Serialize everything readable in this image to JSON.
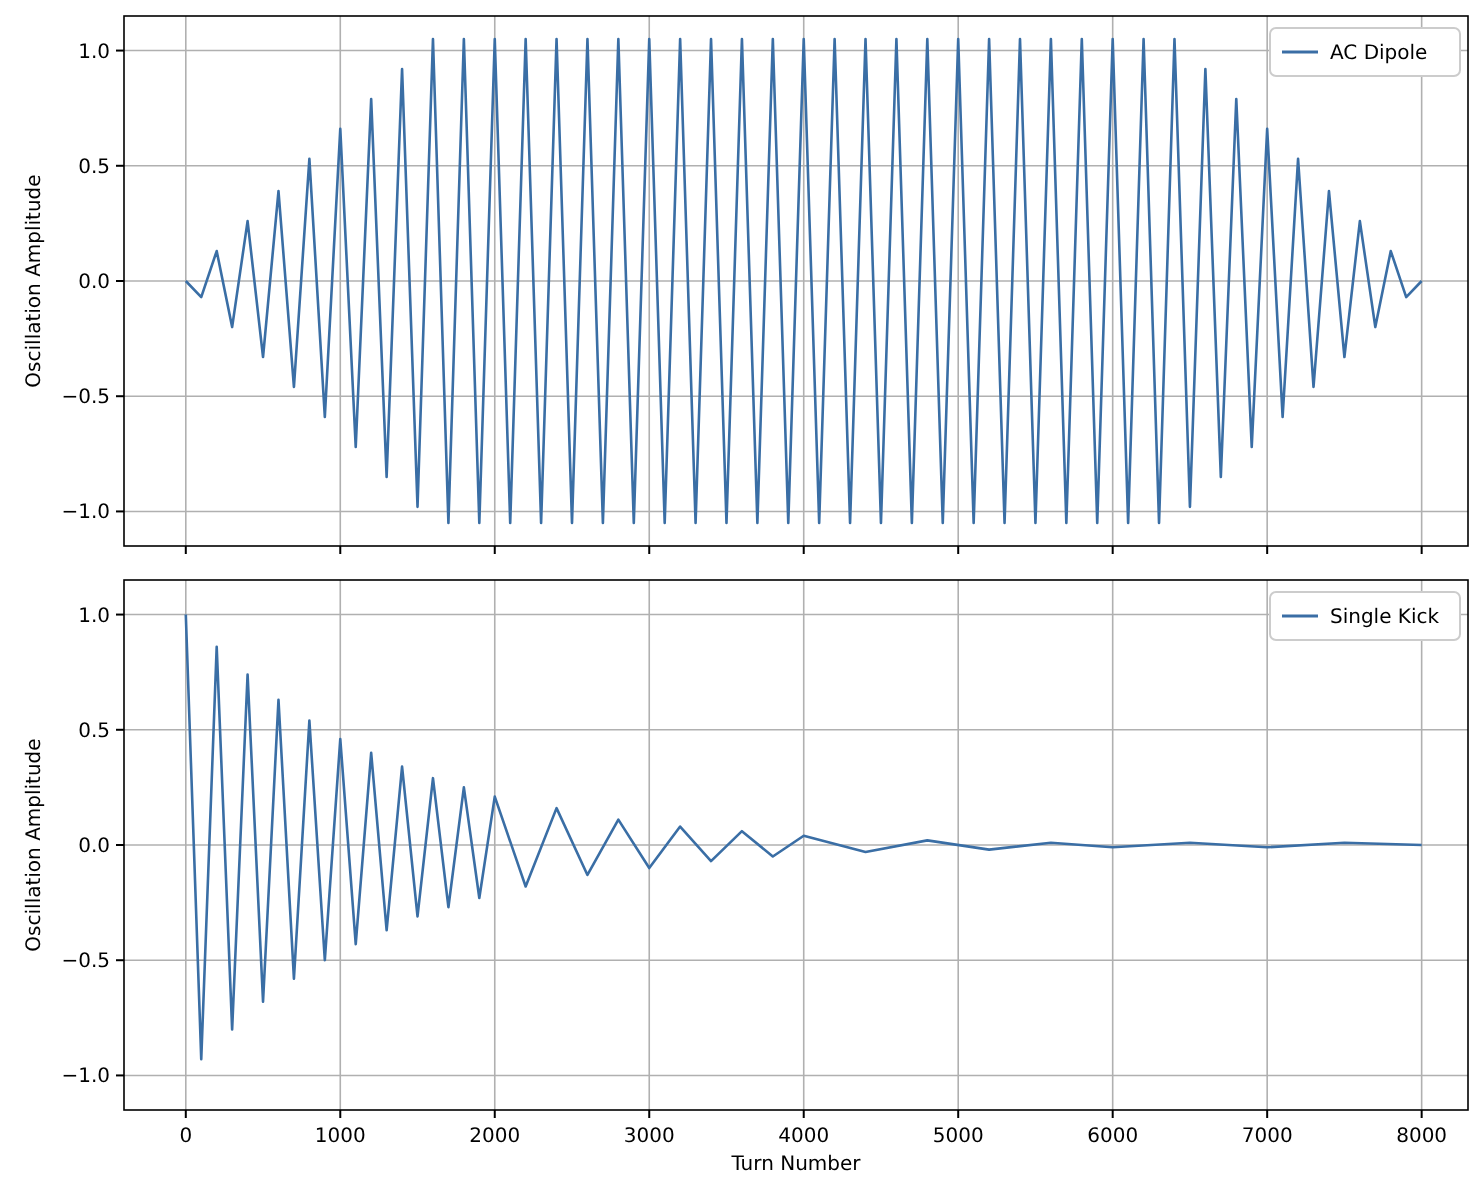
{
  "chart_data": [
    {
      "type": "line",
      "ylabel": "Oscillation Amplitude",
      "xlim": [
        -400,
        8300
      ],
      "ylim": [
        -1.15,
        1.15
      ],
      "xticks": [
        0,
        1000,
        2000,
        3000,
        4000,
        5000,
        6000,
        7000,
        8000
      ],
      "yticks": [
        {
          "value": -1,
          "label": "−1.0"
        },
        {
          "value": -0.5,
          "label": "−0.5"
        },
        {
          "value": 0,
          "label": "0.0"
        },
        {
          "value": 0.5,
          "label": "0.5"
        },
        {
          "value": 1,
          "label": "1.0"
        }
      ],
      "tick_labels": "y",
      "grid": true,
      "legend": "top right",
      "line_style": "solid",
      "series": [
        {
          "name": "AC Dipole",
          "color": "#3a6ea5",
          "x": [
            0,
            100,
            200,
            300,
            400,
            500,
            600,
            700,
            800,
            900,
            1000,
            1100,
            1200,
            1300,
            1400,
            1500,
            1600,
            1700,
            1800,
            1900,
            2000,
            2100,
            2200,
            2300,
            2400,
            2500,
            2600,
            2700,
            2800,
            2900,
            3000,
            3100,
            3200,
            3300,
            3400,
            3500,
            3600,
            3700,
            3800,
            3900,
            4000,
            4100,
            4200,
            4300,
            4400,
            4500,
            4600,
            4700,
            4800,
            4900,
            5000,
            5100,
            5200,
            5300,
            5400,
            5500,
            5600,
            5700,
            5800,
            5900,
            6000,
            6100,
            6200,
            6300,
            6400,
            6500,
            6600,
            6700,
            6800,
            6900,
            7000,
            7100,
            7200,
            7300,
            7400,
            7500,
            7600,
            7700,
            7800,
            7900,
            8000
          ],
          "values": [
            0,
            -0.07,
            0.13,
            -0.2,
            0.26,
            -0.33,
            0.39,
            -0.46,
            0.53,
            -0.59,
            0.66,
            -0.72,
            0.79,
            -0.85,
            0.92,
            -0.98,
            1.05,
            -1.05,
            1.05,
            -1.05,
            1.05,
            -1.05,
            1.05,
            -1.05,
            1.05,
            -1.05,
            1.05,
            -1.05,
            1.05,
            -1.05,
            1.05,
            -1.05,
            1.05,
            -1.05,
            1.05,
            -1.05,
            1.05,
            -1.05,
            1.05,
            -1.05,
            1.05,
            -1.05,
            1.05,
            -1.05,
            1.05,
            -1.05,
            1.05,
            -1.05,
            1.05,
            -1.05,
            1.05,
            -1.05,
            1.05,
            -1.05,
            1.05,
            -1.05,
            1.05,
            -1.05,
            1.05,
            -1.05,
            1.05,
            -1.05,
            1.05,
            -1.05,
            1.05,
            -0.98,
            0.92,
            -0.85,
            0.79,
            -0.72,
            0.66,
            -0.59,
            0.53,
            -0.46,
            0.39,
            -0.33,
            0.26,
            -0.2,
            0.13,
            -0.07,
            0
          ]
        }
      ]
    },
    {
      "type": "line",
      "xlabel": "Turn Number",
      "ylabel": "Oscillation Amplitude",
      "xlim": [
        -400,
        8300
      ],
      "ylim": [
        -1.15,
        1.15
      ],
      "xticks": [
        0,
        1000,
        2000,
        3000,
        4000,
        5000,
        6000,
        7000,
        8000
      ],
      "yticks": [
        {
          "value": -1,
          "label": "−1.0"
        },
        {
          "value": -0.5,
          "label": "−0.5"
        },
        {
          "value": 0,
          "label": "0.0"
        },
        {
          "value": 0.5,
          "label": "0.5"
        },
        {
          "value": 1,
          "label": "1.0"
        }
      ],
      "grid": true,
      "legend": "top right",
      "line_style": "solid",
      "series": [
        {
          "name": "Single Kick",
          "color": "#3a6ea5",
          "x": [
            0,
            100,
            200,
            300,
            400,
            500,
            600,
            700,
            800,
            900,
            1000,
            1100,
            1200,
            1300,
            1400,
            1500,
            1600,
            1700,
            1800,
            1900,
            2000,
            2200,
            2400,
            2600,
            2800,
            3000,
            3200,
            3400,
            3600,
            3800,
            4000,
            4400,
            4800,
            5200,
            5600,
            6000,
            6500,
            7000,
            7500,
            8000
          ],
          "values": [
            1.0,
            -0.93,
            0.86,
            -0.8,
            0.74,
            -0.68,
            0.63,
            -0.58,
            0.54,
            -0.5,
            0.46,
            -0.43,
            0.4,
            -0.37,
            0.34,
            -0.31,
            0.29,
            -0.27,
            0.25,
            -0.23,
            0.21,
            -0.18,
            0.16,
            -0.13,
            0.11,
            -0.1,
            0.08,
            -0.07,
            0.06,
            -0.05,
            0.04,
            -0.03,
            0.02,
            -0.02,
            0.01,
            -0.01,
            0.01,
            -0.01,
            0.01,
            0
          ]
        }
      ]
    }
  ]
}
